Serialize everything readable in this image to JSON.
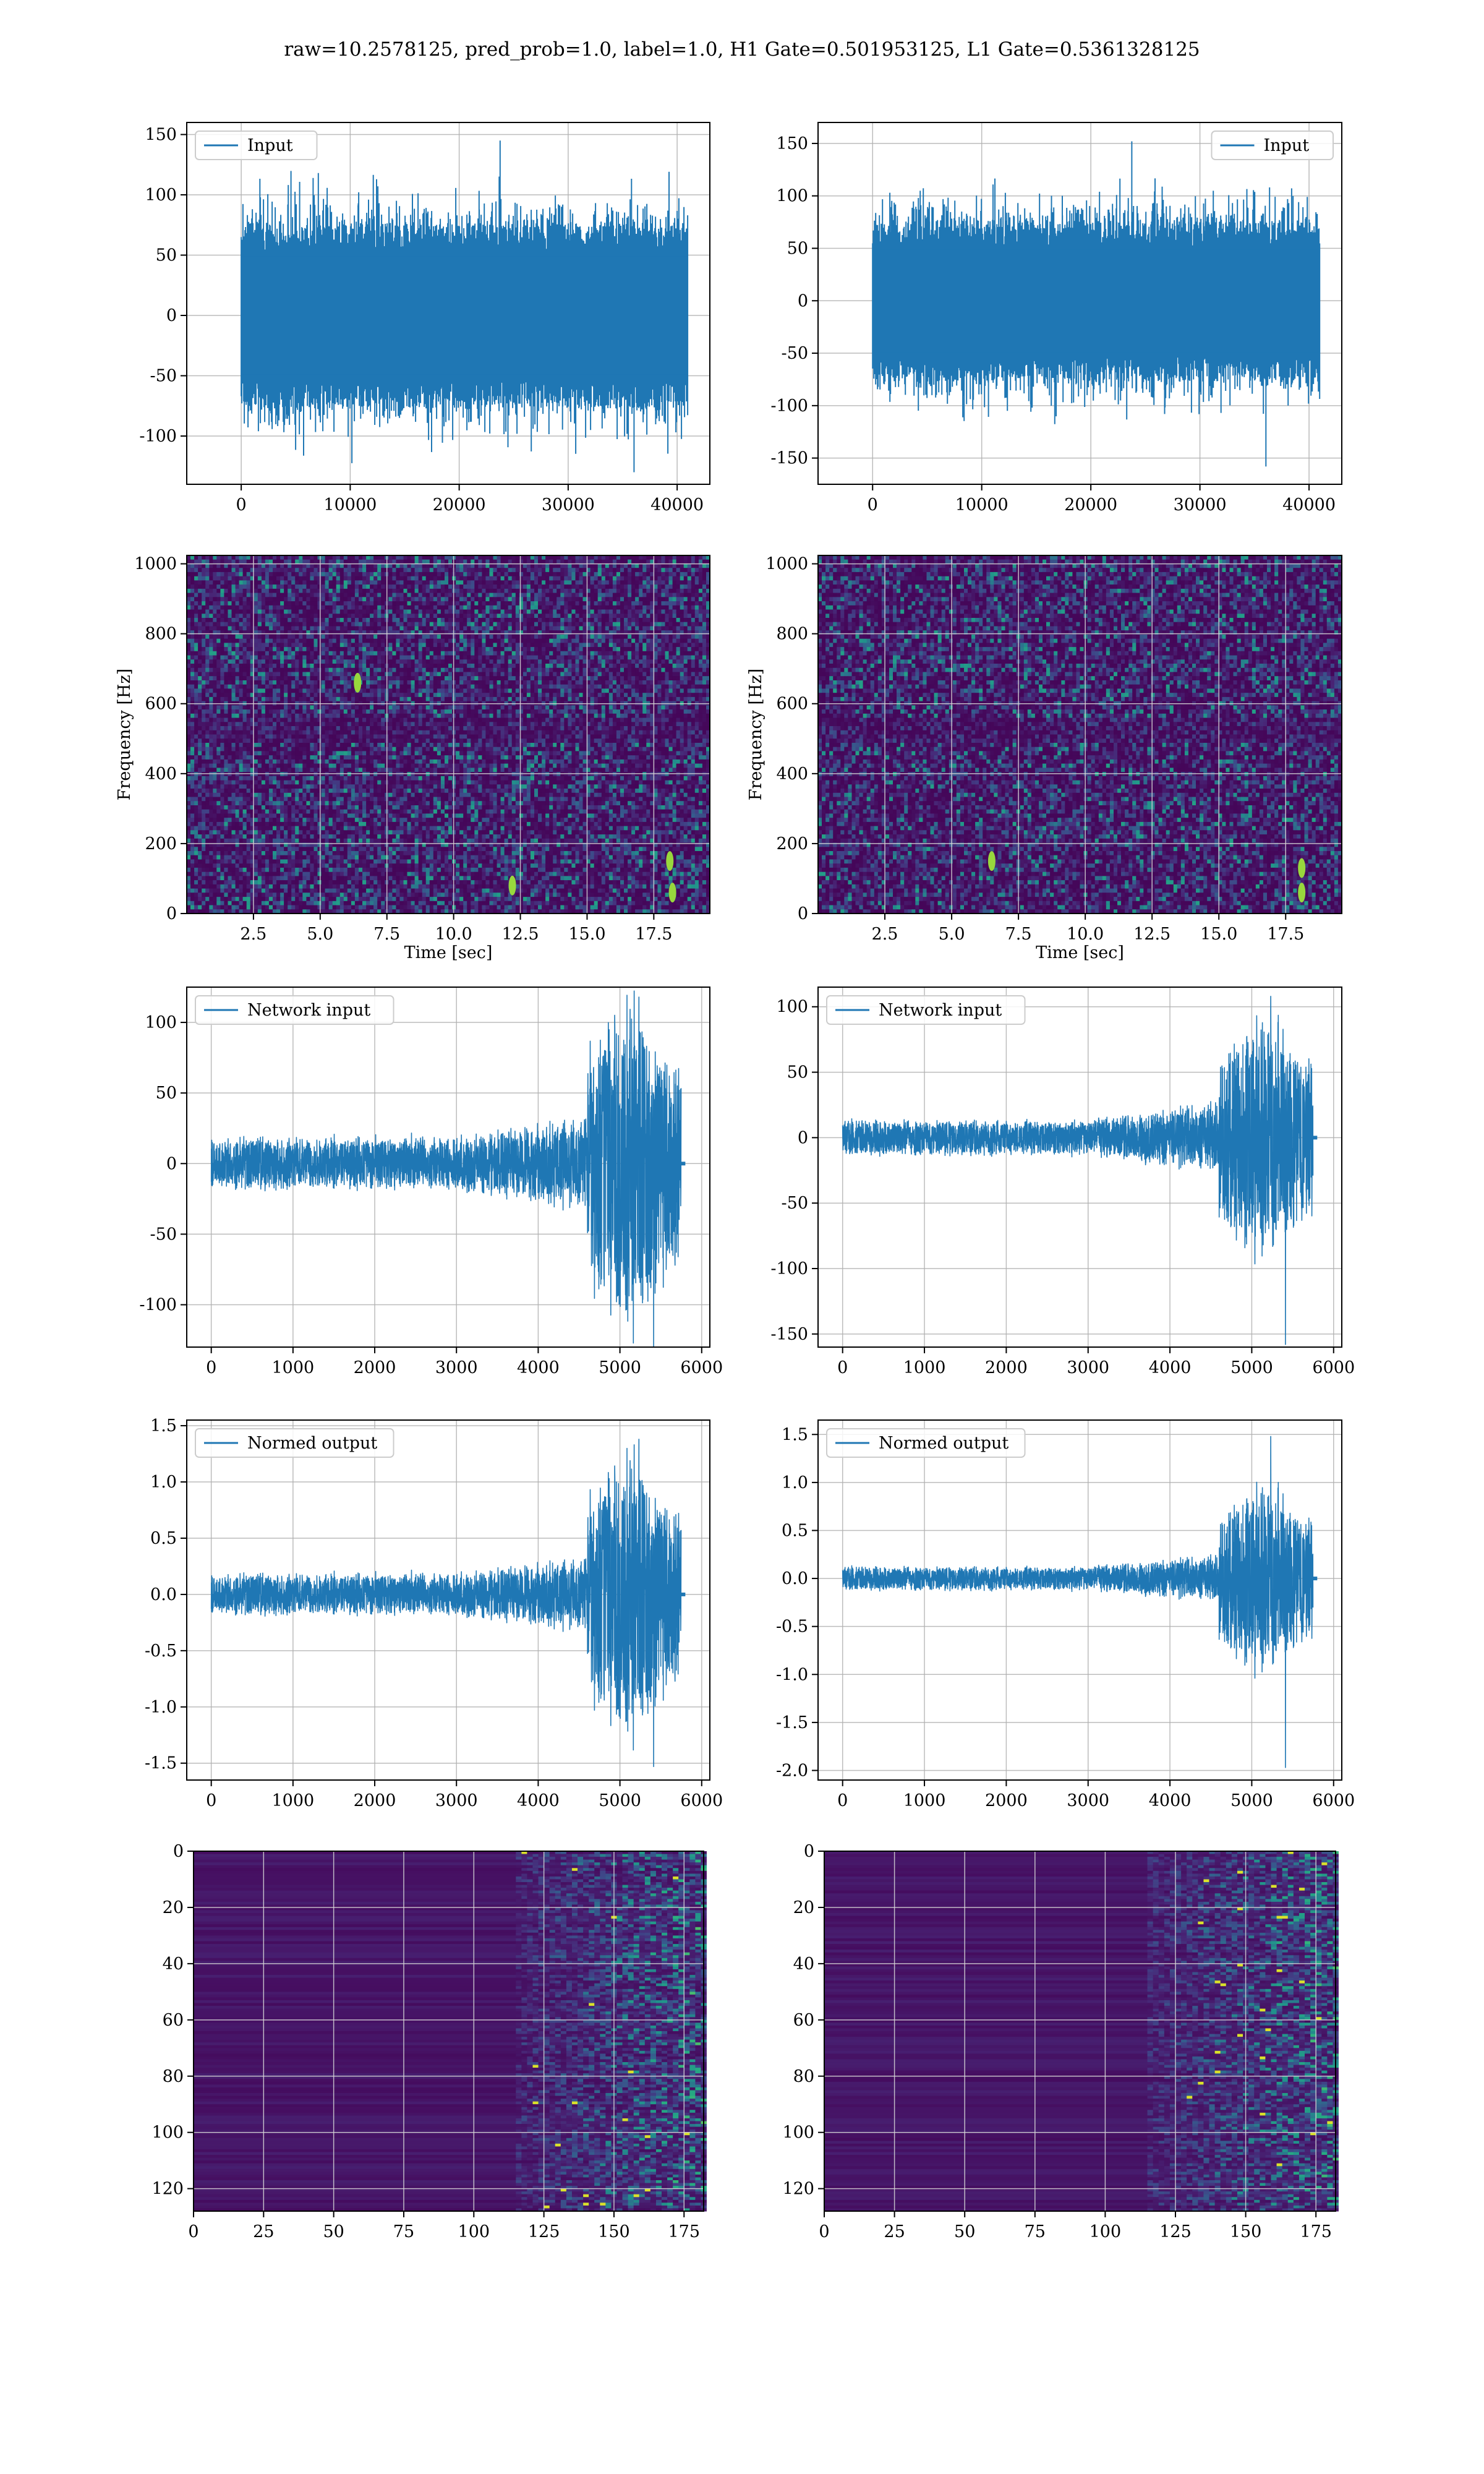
{
  "figure": {
    "suptitle": "raw=10.2578125, pred_prob=1.0, label=1.0, H1 Gate=0.501953125, L1 Gate=0.5361328125"
  },
  "colors": {
    "line": "#1f77b4",
    "grid": "#b0b0b0",
    "viridis_low": "#440154",
    "viridis_mid": "#21918c",
    "viridis_high": "#fde725"
  },
  "chart_data": [
    {
      "id": "h1-input",
      "type": "line",
      "detector": "H1",
      "legend": "Input",
      "legend_loc": "upper left",
      "xlim": [
        -5000,
        43000
      ],
      "ylim": [
        -140,
        160
      ],
      "xticks": [
        0,
        10000,
        20000,
        30000,
        40000
      ],
      "yticks": [
        -100,
        -50,
        0,
        50,
        100,
        150
      ],
      "n_samples": 40960,
      "noise": {
        "x_start": 0,
        "x_end": 40960,
        "envelope": 70,
        "peak_max": 145,
        "peak_min": -130
      }
    },
    {
      "id": "l1-input",
      "type": "line",
      "detector": "L1",
      "legend": "Input",
      "legend_loc": "upper right",
      "xlim": [
        -5000,
        43000
      ],
      "ylim": [
        -175,
        170
      ],
      "xticks": [
        0,
        10000,
        20000,
        30000,
        40000
      ],
      "yticks": [
        -150,
        -100,
        -50,
        0,
        50,
        100,
        150
      ],
      "n_samples": 40960,
      "noise": {
        "x_start": 0,
        "x_end": 40960,
        "envelope": 70,
        "peak_max": 152,
        "peak_min": -158
      }
    },
    {
      "id": "h1-spectrogram",
      "type": "heatmap",
      "detector": "H1",
      "xlabel": "Time [sec]",
      "ylabel": "Frequency [Hz]",
      "xlim": [
        0,
        19.6
      ],
      "ylim": [
        0,
        1024
      ],
      "xticks": [
        2.5,
        5.0,
        7.5,
        10.0,
        12.5,
        15.0,
        17.5
      ],
      "yticks": [
        0,
        200,
        400,
        600,
        800,
        1000
      ],
      "colormap": "viridis",
      "bright_spots": [
        {
          "t": 18.2,
          "f": 60
        },
        {
          "t": 18.1,
          "f": 150
        },
        {
          "t": 12.2,
          "f": 80
        },
        {
          "t": 6.4,
          "f": 660
        }
      ]
    },
    {
      "id": "l1-spectrogram",
      "type": "heatmap",
      "detector": "L1",
      "xlabel": "Time [sec]",
      "ylabel": "Frequency [Hz]",
      "xlim": [
        0,
        19.6
      ],
      "ylim": [
        0,
        1024
      ],
      "xticks": [
        2.5,
        5.0,
        7.5,
        10.0,
        12.5,
        15.0,
        17.5
      ],
      "yticks": [
        0,
        200,
        400,
        600,
        800,
        1000
      ],
      "colormap": "viridis",
      "bright_spots": [
        {
          "t": 18.1,
          "f": 60
        },
        {
          "t": 18.1,
          "f": 130
        },
        {
          "t": 6.5,
          "f": 150
        }
      ]
    },
    {
      "id": "h1-network-input",
      "type": "line",
      "detector": "H1",
      "legend": "Network input",
      "legend_loc": "upper left",
      "xlim": [
        -300,
        6100
      ],
      "ylim": [
        -130,
        125
      ],
      "xticks": [
        0,
        1000,
        2000,
        3000,
        4000,
        5000,
        6000
      ],
      "yticks": [
        -100,
        -50,
        0,
        50,
        100
      ],
      "n_samples": 5800,
      "envelope": {
        "base": 18,
        "rise_start": 3000,
        "rise_mid": 4600,
        "rise_mid_amp": 30,
        "burst_start": 4600,
        "burst_end": 5750,
        "burst_amp": 80,
        "peak_max": 118,
        "peak_min": -130
      }
    },
    {
      "id": "l1-network-input",
      "type": "line",
      "detector": "L1",
      "legend": "Network input",
      "legend_loc": "upper left",
      "xlim": [
        -300,
        6100
      ],
      "ylim": [
        -160,
        115
      ],
      "xticks": [
        0,
        1000,
        2000,
        3000,
        4000,
        5000,
        6000
      ],
      "yticks": [
        -150,
        -100,
        -50,
        0,
        50,
        100
      ],
      "n_samples": 5800,
      "envelope": {
        "base": 13,
        "rise_start": 3000,
        "rise_mid": 4600,
        "rise_mid_amp": 25,
        "burst_start": 4600,
        "burst_end": 5750,
        "burst_amp": 70,
        "peak_max": 108,
        "peak_min": -158
      }
    },
    {
      "id": "h1-normed-output",
      "type": "line",
      "detector": "H1",
      "legend": "Normed output",
      "legend_loc": "upper left",
      "xlim": [
        -300,
        6100
      ],
      "ylim": [
        -1.65,
        1.55
      ],
      "xticks": [
        0,
        1000,
        2000,
        3000,
        4000,
        5000,
        6000
      ],
      "yticks": [
        -1.5,
        -1.0,
        -0.5,
        0.0,
        0.5,
        1.0,
        1.5
      ],
      "n_samples": 5800,
      "envelope": {
        "base": 0.18,
        "rise_start": 3000,
        "rise_mid": 4600,
        "rise_mid_amp": 0.3,
        "burst_start": 4600,
        "burst_end": 5750,
        "burst_amp": 0.9,
        "peak_max": 1.38,
        "peak_min": -1.53
      }
    },
    {
      "id": "l1-normed-output",
      "type": "line",
      "detector": "L1",
      "legend": "Normed output",
      "legend_loc": "upper left",
      "xlim": [
        -300,
        6100
      ],
      "ylim": [
        -2.1,
        1.65
      ],
      "xticks": [
        0,
        1000,
        2000,
        3000,
        4000,
        5000,
        6000
      ],
      "yticks": [
        -2.0,
        -1.5,
        -1.0,
        -0.5,
        0.0,
        0.5,
        1.0,
        1.5
      ],
      "n_samples": 5800,
      "envelope": {
        "base": 0.12,
        "rise_start": 3000,
        "rise_mid": 4600,
        "rise_mid_amp": 0.22,
        "burst_start": 4600,
        "burst_end": 5750,
        "burst_amp": 0.8,
        "peak_max": 1.48,
        "peak_min": -1.97
      }
    },
    {
      "id": "h1-feature-map",
      "type": "heatmap",
      "detector": "H1",
      "xlim": [
        0,
        182
      ],
      "ylim": [
        128,
        0
      ],
      "xticks": [
        0,
        25,
        50,
        75,
        100,
        125,
        150,
        175
      ],
      "yticks": [
        0,
        20,
        40,
        60,
        80,
        100,
        120
      ],
      "colormap": "viridis",
      "activity_start": 125
    },
    {
      "id": "l1-feature-map",
      "type": "heatmap",
      "detector": "L1",
      "xlim": [
        0,
        182
      ],
      "ylim": [
        128,
        0
      ],
      "xticks": [
        0,
        25,
        50,
        75,
        100,
        125,
        150,
        175
      ],
      "yticks": [
        0,
        20,
        40,
        60,
        80,
        100,
        120
      ],
      "colormap": "viridis",
      "activity_start": 125
    }
  ]
}
